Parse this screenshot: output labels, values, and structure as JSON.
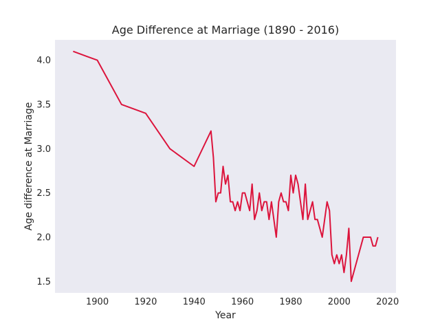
{
  "chart_data": {
    "type": "line",
    "title": "Age Difference at Marriage (1890 - 2016)",
    "xlabel": "Year",
    "ylabel": "Age difference at Marriage",
    "xlim": [
      1882.5,
      2023.5
    ],
    "ylim": [
      1.37,
      4.23
    ],
    "xticks": [
      1900,
      1920,
      1940,
      1960,
      1980,
      2000,
      2020
    ],
    "yticks": [
      1.5,
      2.0,
      2.5,
      3.0,
      3.5,
      4.0
    ],
    "ytick_labels": [
      "1.5",
      "2.0",
      "2.5",
      "3.0",
      "3.5",
      "4.0"
    ],
    "grid": false,
    "background": "#eaeaf2",
    "series": [
      {
        "color": "#dc143c",
        "x": [
          1890,
          1900,
          1910,
          1920,
          1930,
          1940,
          1947,
          1948,
          1949,
          1950,
          1951,
          1952,
          1953,
          1954,
          1955,
          1956,
          1957,
          1958,
          1959,
          1960,
          1961,
          1962,
          1963,
          1964,
          1965,
          1966,
          1967,
          1968,
          1969,
          1970,
          1971,
          1972,
          1973,
          1974,
          1975,
          1976,
          1977,
          1978,
          1979,
          1980,
          1981,
          1982,
          1983,
          1984,
          1985,
          1986,
          1987,
          1988,
          1989,
          1990,
          1991,
          1992,
          1993,
          1994,
          1995,
          1996,
          1997,
          1998,
          1999,
          2000,
          2001,
          2002,
          2003,
          2004,
          2005,
          2006,
          2007,
          2008,
          2009,
          2010,
          2011,
          2012,
          2013,
          2014,
          2015,
          2016
        ],
        "y": [
          4.1,
          4.0,
          3.5,
          3.4,
          3.0,
          2.8,
          3.2,
          2.9,
          2.4,
          2.5,
          2.5,
          2.8,
          2.6,
          2.7,
          2.4,
          2.4,
          2.3,
          2.4,
          2.3,
          2.5,
          2.5,
          2.4,
          2.3,
          2.6,
          2.2,
          2.3,
          2.5,
          2.3,
          2.4,
          2.4,
          2.2,
          2.4,
          2.2,
          2.0,
          2.4,
          2.5,
          2.4,
          2.4,
          2.3,
          2.7,
          2.5,
          2.7,
          2.6,
          2.4,
          2.2,
          2.6,
          2.2,
          2.3,
          2.4,
          2.2,
          2.2,
          2.1,
          2.0,
          2.2,
          2.4,
          2.3,
          1.8,
          1.7,
          1.8,
          1.7,
          1.8,
          1.6,
          1.8,
          2.1,
          1.5,
          1.6,
          1.7,
          1.8,
          1.9,
          2.0,
          2.0,
          2.0,
          2.0,
          1.9,
          1.9,
          2.0
        ]
      }
    ]
  }
}
